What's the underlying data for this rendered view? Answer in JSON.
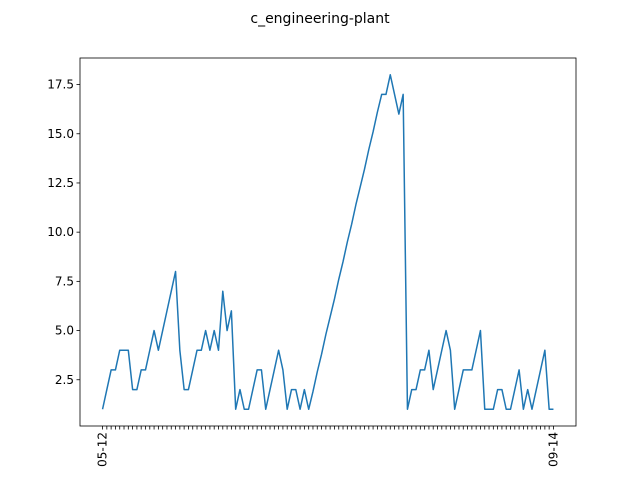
{
  "chart_data": {
    "type": "line",
    "title": "c_engineering-plant",
    "categories": [
      "05-12",
      null,
      null,
      null,
      null,
      null,
      null,
      null,
      null,
      null,
      null,
      null,
      null,
      null,
      null,
      null,
      null,
      null,
      null,
      null,
      null,
      null,
      null,
      null,
      null,
      null,
      null,
      null,
      null,
      null,
      null,
      null,
      null,
      null,
      null,
      null,
      null,
      null,
      null,
      null,
      null,
      null,
      null,
      null,
      null,
      null,
      null,
      null,
      null,
      null,
      null,
      null,
      null,
      null,
      null,
      null,
      null,
      null,
      null,
      null,
      null,
      null,
      null,
      null,
      null,
      null,
      null,
      null,
      null,
      null,
      null,
      null,
      null,
      null,
      null,
      null,
      null,
      null,
      null,
      null,
      null,
      null,
      null,
      null,
      null,
      null,
      null,
      null,
      null,
      null,
      null,
      null,
      null,
      null,
      null,
      null,
      null,
      null,
      null,
      null,
      null,
      null,
      null,
      null,
      null,
      "09-14"
    ],
    "series": [
      {
        "color": "#1f77b4",
        "values": [
          1,
          2,
          3,
          3,
          4,
          4,
          4,
          2,
          2,
          3,
          3,
          4,
          5,
          4,
          5,
          6,
          7,
          8,
          4,
          2,
          2,
          3,
          4,
          4,
          5,
          4,
          5,
          4,
          7,
          5,
          6,
          1,
          2,
          1,
          1,
          2,
          3,
          3,
          1,
          2,
          3,
          4,
          3,
          1,
          2,
          2,
          1,
          2,
          1,
          1.9,
          2.9,
          3.8,
          4.8,
          5.7,
          6.6,
          7.6,
          8.5,
          9.5,
          10.4,
          11.4,
          12.3,
          13.2,
          14.2,
          15.1,
          16.1,
          17,
          17,
          18,
          17,
          16,
          17,
          1,
          2,
          2,
          3,
          3,
          4,
          2,
          3,
          4,
          5,
          4,
          1,
          2,
          3,
          3,
          3,
          4,
          5,
          1,
          1,
          1,
          2,
          2,
          1,
          1,
          2,
          3,
          1,
          2,
          1,
          2,
          3,
          4,
          1,
          1
        ]
      }
    ],
    "ylim": [
      0.15,
      18.85
    ],
    "yticks": [
      2.5,
      {
        "value": 5,
        "label": "5.0"
      },
      7.5,
      {
        "value": 10,
        "label": "10.0"
      },
      12.5,
      {
        "value": 15,
        "label": "15.0"
      },
      17.5
    ]
  }
}
